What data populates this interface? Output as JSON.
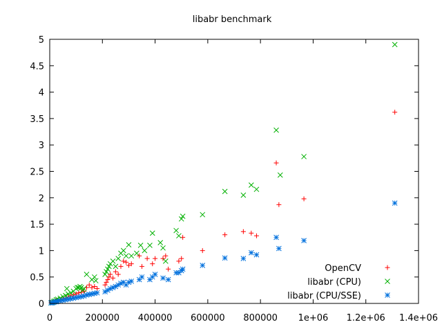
{
  "chart_data": {
    "type": "scatter",
    "title": "libabr benchmark",
    "xlabel": "",
    "ylabel": "",
    "xlim": [
      0,
      1400000
    ],
    "ylim": [
      0,
      5
    ],
    "x_ticks": [
      {
        "value": 0,
        "label": "0"
      },
      {
        "value": 200000,
        "label": "200000"
      },
      {
        "value": 400000,
        "label": "400000"
      },
      {
        "value": 600000,
        "label": "600000"
      },
      {
        "value": 800000,
        "label": "800000"
      },
      {
        "value": 1000000,
        "label": "1e+06"
      },
      {
        "value": 1200000,
        "label": "1.2e+06"
      },
      {
        "value": 1400000,
        "label": "1.4e+06"
      }
    ],
    "y_ticks": [
      {
        "value": 0,
        "label": "0"
      },
      {
        "value": 0.5,
        "label": "0.5"
      },
      {
        "value": 1,
        "label": "1"
      },
      {
        "value": 1.5,
        "label": "1.5"
      },
      {
        "value": 2,
        "label": "2"
      },
      {
        "value": 2.5,
        "label": "2.5"
      },
      {
        "value": 3,
        "label": "3"
      },
      {
        "value": 3.5,
        "label": "3.5"
      },
      {
        "value": 4,
        "label": "4"
      },
      {
        "value": 4.5,
        "label": "4.5"
      },
      {
        "value": 5,
        "label": "5"
      }
    ],
    "grid": false,
    "legend_position": "bottom-right",
    "series": [
      {
        "name": "OpenCV",
        "marker": "plus",
        "color": "#ff0000",
        "points": [
          [
            5000,
            0.01
          ],
          [
            10000,
            0.02
          ],
          [
            15000,
            0.03
          ],
          [
            20000,
            0.04
          ],
          [
            25000,
            0.05
          ],
          [
            30000,
            0.06
          ],
          [
            40000,
            0.07
          ],
          [
            50000,
            0.09
          ],
          [
            60000,
            0.1
          ],
          [
            70000,
            0.12
          ],
          [
            80000,
            0.14
          ],
          [
            90000,
            0.16
          ],
          [
            100000,
            0.18
          ],
          [
            110000,
            0.2
          ],
          [
            120000,
            0.21
          ],
          [
            130000,
            0.23
          ],
          [
            140000,
            0.3
          ],
          [
            150000,
            0.35
          ],
          [
            160000,
            0.3
          ],
          [
            170000,
            0.32
          ],
          [
            180000,
            0.28
          ],
          [
            210000,
            0.35
          ],
          [
            215000,
            0.4
          ],
          [
            220000,
            0.45
          ],
          [
            225000,
            0.5
          ],
          [
            230000,
            0.55
          ],
          [
            240000,
            0.48
          ],
          [
            250000,
            0.6
          ],
          [
            260000,
            0.55
          ],
          [
            270000,
            0.7
          ],
          [
            280000,
            0.8
          ],
          [
            290000,
            0.78
          ],
          [
            300000,
            0.72
          ],
          [
            310000,
            0.75
          ],
          [
            340000,
            0.9
          ],
          [
            350000,
            0.7
          ],
          [
            370000,
            0.85
          ],
          [
            390000,
            0.75
          ],
          [
            400000,
            0.85
          ],
          [
            430000,
            0.85
          ],
          [
            440000,
            0.9
          ],
          [
            450000,
            0.65
          ],
          [
            490000,
            0.8
          ],
          [
            500000,
            0.85
          ],
          [
            505000,
            1.25
          ],
          [
            580000,
            1.0
          ],
          [
            665000,
            1.3
          ],
          [
            735000,
            1.36
          ],
          [
            765000,
            1.33
          ],
          [
            785000,
            1.28
          ],
          [
            860000,
            2.66
          ],
          [
            870000,
            1.87
          ],
          [
            965000,
            1.98
          ],
          [
            1310000,
            3.62
          ]
        ]
      },
      {
        "name": "libabr (CPU)",
        "marker": "x",
        "color": "#00b000",
        "points": [
          [
            5000,
            0.01
          ],
          [
            10000,
            0.02
          ],
          [
            15000,
            0.04
          ],
          [
            20000,
            0.05
          ],
          [
            25000,
            0.07
          ],
          [
            30000,
            0.08
          ],
          [
            40000,
            0.1
          ],
          [
            50000,
            0.13
          ],
          [
            60000,
            0.15
          ],
          [
            65000,
            0.28
          ],
          [
            70000,
            0.18
          ],
          [
            80000,
            0.2
          ],
          [
            90000,
            0.23
          ],
          [
            100000,
            0.28
          ],
          [
            105000,
            0.3
          ],
          [
            110000,
            0.3
          ],
          [
            115000,
            0.32
          ],
          [
            120000,
            0.3
          ],
          [
            125000,
            0.25
          ],
          [
            130000,
            0.28
          ],
          [
            140000,
            0.55
          ],
          [
            160000,
            0.45
          ],
          [
            170000,
            0.5
          ],
          [
            175000,
            0.43
          ],
          [
            210000,
            0.55
          ],
          [
            215000,
            0.6
          ],
          [
            220000,
            0.65
          ],
          [
            225000,
            0.7
          ],
          [
            230000,
            0.75
          ],
          [
            240000,
            0.8
          ],
          [
            250000,
            0.7
          ],
          [
            260000,
            0.85
          ],
          [
            270000,
            0.95
          ],
          [
            280000,
            1.0
          ],
          [
            290000,
            0.9
          ],
          [
            300000,
            1.11
          ],
          [
            310000,
            0.9
          ],
          [
            330000,
            0.95
          ],
          [
            345000,
            1.1
          ],
          [
            360000,
            1.0
          ],
          [
            380000,
            1.1
          ],
          [
            390000,
            1.33
          ],
          [
            420000,
            1.15
          ],
          [
            430000,
            1.05
          ],
          [
            440000,
            0.8
          ],
          [
            480000,
            1.38
          ],
          [
            490000,
            1.28
          ],
          [
            500000,
            1.6
          ],
          [
            505000,
            1.65
          ],
          [
            580000,
            1.68
          ],
          [
            665000,
            2.12
          ],
          [
            735000,
            2.05
          ],
          [
            765000,
            2.24
          ],
          [
            785000,
            2.16
          ],
          [
            860000,
            3.28
          ],
          [
            875000,
            2.43
          ],
          [
            965000,
            2.78
          ],
          [
            1310000,
            4.9
          ]
        ]
      },
      {
        "name": "libabr (CPU/SSE)",
        "marker": "star",
        "color": "#0070dd",
        "points": [
          [
            5000,
            0.01
          ],
          [
            10000,
            0.01
          ],
          [
            15000,
            0.02
          ],
          [
            20000,
            0.03
          ],
          [
            25000,
            0.03
          ],
          [
            30000,
            0.04
          ],
          [
            40000,
            0.05
          ],
          [
            50000,
            0.06
          ],
          [
            60000,
            0.07
          ],
          [
            70000,
            0.08
          ],
          [
            80000,
            0.09
          ],
          [
            90000,
            0.1
          ],
          [
            100000,
            0.11
          ],
          [
            110000,
            0.12
          ],
          [
            120000,
            0.13
          ],
          [
            130000,
            0.14
          ],
          [
            140000,
            0.16
          ],
          [
            150000,
            0.17
          ],
          [
            160000,
            0.18
          ],
          [
            170000,
            0.19
          ],
          [
            180000,
            0.2
          ],
          [
            210000,
            0.22
          ],
          [
            220000,
            0.25
          ],
          [
            230000,
            0.28
          ],
          [
            240000,
            0.3
          ],
          [
            250000,
            0.32
          ],
          [
            260000,
            0.35
          ],
          [
            270000,
            0.38
          ],
          [
            280000,
            0.4
          ],
          [
            290000,
            0.35
          ],
          [
            300000,
            0.4
          ],
          [
            310000,
            0.42
          ],
          [
            340000,
            0.45
          ],
          [
            350000,
            0.5
          ],
          [
            380000,
            0.45
          ],
          [
            390000,
            0.5
          ],
          [
            400000,
            0.55
          ],
          [
            430000,
            0.48
          ],
          [
            450000,
            0.45
          ],
          [
            480000,
            0.58
          ],
          [
            490000,
            0.58
          ],
          [
            500000,
            0.62
          ],
          [
            505000,
            0.65
          ],
          [
            580000,
            0.72
          ],
          [
            665000,
            0.86
          ],
          [
            735000,
            0.85
          ],
          [
            765000,
            0.96
          ],
          [
            785000,
            0.92
          ],
          [
            860000,
            1.25
          ],
          [
            870000,
            1.04
          ],
          [
            965000,
            1.19
          ],
          [
            1310000,
            1.9
          ]
        ]
      }
    ]
  }
}
